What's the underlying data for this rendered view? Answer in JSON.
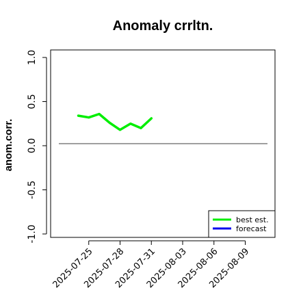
{
  "chart_data": {
    "type": "line",
    "title": "Anomaly crrltn.",
    "xlabel": "",
    "ylabel": "anom.corr.",
    "x_ticks": [
      "2025-07-25",
      "2025-07-28",
      "2025-07-31",
      "2025-08-03",
      "2025-08-06",
      "2025-08-09"
    ],
    "highlighted_tick": "2025-07-31",
    "highlight_color": "#008000",
    "xlim": [
      "2025-07-22",
      "2025-08-11"
    ],
    "ylim": [
      -1.0,
      1.0
    ],
    "y_ticks": [
      "-1.0",
      "-0.5",
      "0.0",
      "0.5",
      "1.0"
    ],
    "reference_line_y": 0,
    "grid": false,
    "legend_position": "bottom-right",
    "series": [
      {
        "name": "best est.",
        "color": "#00ee00",
        "points": [
          {
            "x": "2025-07-24",
            "y": 0.34
          },
          {
            "x": "2025-07-25",
            "y": 0.32
          },
          {
            "x": "2025-07-26",
            "y": 0.36
          },
          {
            "x": "2025-07-27",
            "y": 0.26
          },
          {
            "x": "2025-07-28",
            "y": 0.18
          },
          {
            "x": "2025-07-29",
            "y": 0.25
          },
          {
            "x": "2025-07-30",
            "y": 0.2
          },
          {
            "x": "2025-07-31",
            "y": 0.31
          }
        ]
      },
      {
        "name": "forecast",
        "color": "#0000ee",
        "points": []
      }
    ]
  }
}
